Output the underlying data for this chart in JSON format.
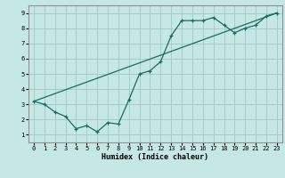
{
  "title": "",
  "xlabel": "Humidex (Indice chaleur)",
  "ylabel": "",
  "bg_color": "#c5e8e5",
  "grid_color": "#a8ccc8",
  "line_color": "#1a6b60",
  "xlim": [
    -0.5,
    23.5
  ],
  "ylim": [
    0.5,
    9.5
  ],
  "xticks": [
    0,
    1,
    2,
    3,
    4,
    5,
    6,
    7,
    8,
    9,
    10,
    11,
    12,
    13,
    14,
    15,
    16,
    17,
    18,
    19,
    20,
    21,
    22,
    23
  ],
  "yticks": [
    1,
    2,
    3,
    4,
    5,
    6,
    7,
    8,
    9
  ],
  "data_x": [
    0,
    1,
    2,
    3,
    4,
    5,
    6,
    7,
    8,
    9,
    10,
    11,
    12,
    13,
    14,
    15,
    16,
    17,
    18,
    19,
    20,
    21,
    22,
    23
  ],
  "data_y": [
    3.2,
    3.0,
    2.5,
    2.2,
    1.4,
    1.6,
    1.2,
    1.8,
    1.7,
    3.3,
    5.0,
    5.2,
    5.8,
    7.5,
    8.5,
    8.5,
    8.5,
    8.7,
    8.2,
    7.7,
    8.0,
    8.2,
    8.8,
    9.0
  ],
  "trend_x": [
    0,
    23
  ],
  "trend_y": [
    3.2,
    9.0
  ]
}
